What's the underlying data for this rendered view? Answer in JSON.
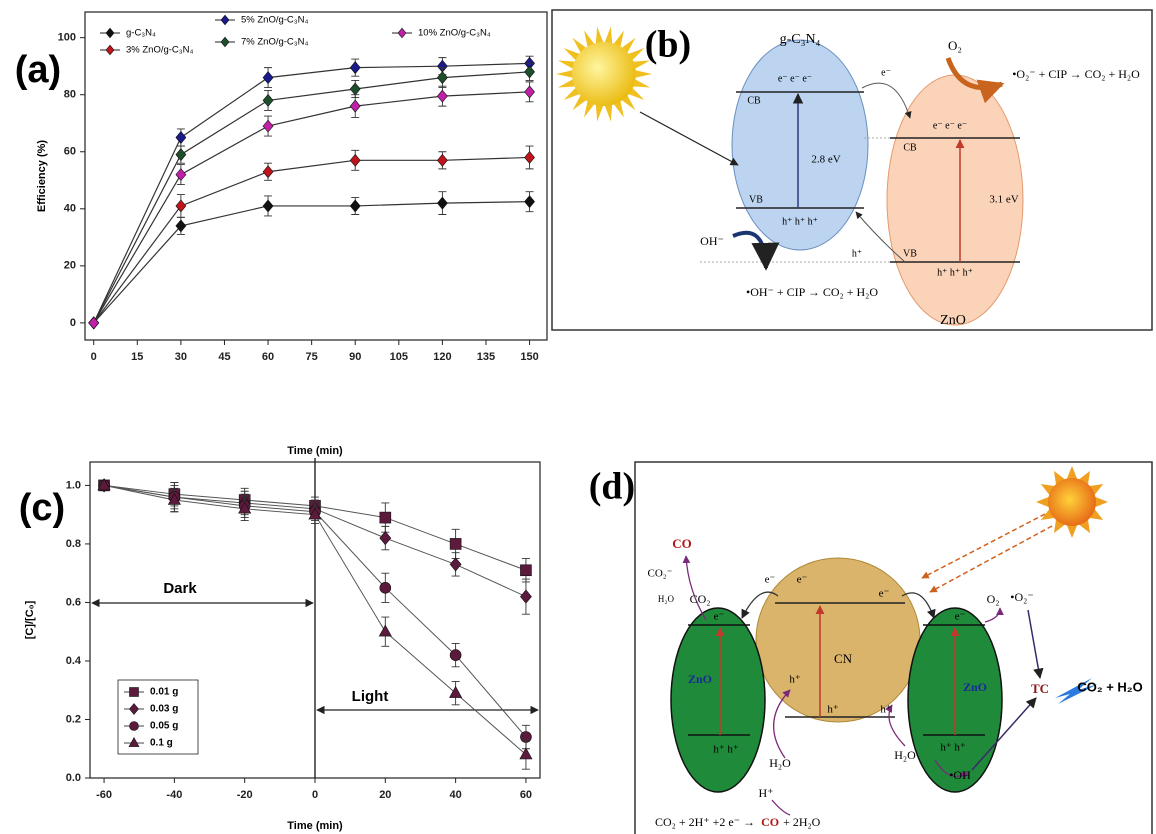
{
  "chart_data": [
    {
      "type": "line",
      "panel_label": "(a)",
      "ylabel": "Efficiency (%)",
      "x": [
        0,
        30,
        60,
        90,
        120,
        150
      ],
      "xlim": [
        -3,
        156
      ],
      "xticks": [
        0,
        15,
        30,
        45,
        60,
        75,
        90,
        105,
        120,
        135,
        150
      ],
      "ylim": [
        -6,
        109
      ],
      "yticks": [
        0,
        20,
        40,
        60,
        80,
        100
      ],
      "line_color": "#333333",
      "series": [
        {
          "name": "g-C₃N₄",
          "color": "#111111",
          "marker": "diamond",
          "values": [
            0,
            34,
            41,
            41,
            42,
            42.5
          ],
          "errors": [
            0,
            3,
            3.5,
            3,
            4,
            3.5
          ]
        },
        {
          "name": "3% ZnO/g-C₃N₄",
          "color": "#c0141c",
          "marker": "diamond",
          "values": [
            0,
            41,
            53,
            57,
            57,
            58
          ],
          "errors": [
            0,
            4,
            3,
            3.5,
            3,
            4
          ]
        },
        {
          "name": "5% ZnO/g-C₃N₄",
          "color": "#1a1a8c",
          "marker": "diamond",
          "values": [
            0,
            65,
            86,
            89.5,
            90,
            91
          ],
          "errors": [
            0,
            3,
            3.5,
            3,
            3,
            2.5
          ]
        },
        {
          "name": "7% ZnO/g-C₃N₄",
          "color": "#1f4f2a",
          "marker": "diamond",
          "values": [
            0,
            59,
            78,
            82,
            86,
            88
          ],
          "errors": [
            0,
            3,
            3.5,
            3,
            3.5,
            3
          ]
        },
        {
          "name": "10% ZnO/g-C₃N₄",
          "color": "#c020a8",
          "marker": "diamond",
          "values": [
            0,
            52,
            69,
            76,
            79.5,
            81
          ],
          "errors": [
            0,
            3.5,
            3.5,
            4,
            3.5,
            3.5
          ]
        }
      ]
    },
    {
      "type": "line",
      "panel_label": "(c)",
      "xlabel": "Time (min)",
      "top_xlabel": "Time (min)",
      "ylabel": "[C]/[C₀]",
      "x": [
        -60,
        -40,
        -20,
        0,
        20,
        40,
        60
      ],
      "xlim": [
        -64,
        64
      ],
      "xticks": [
        -60,
        -40,
        -20,
        0,
        20,
        40,
        60
      ],
      "ylim": [
        0,
        1.08
      ],
      "yticks": [
        {
          "value": 0,
          "label": "0.0"
        },
        0.2,
        0.4,
        0.6,
        0.8,
        {
          "value": 1,
          "label": "1.0"
        }
      ],
      "vline": 0,
      "annotations": [
        "Dark",
        "Light"
      ],
      "line_color": "#555555",
      "series": [
        {
          "name": "0.01 g",
          "color": "#5c1a3c",
          "marker": "square",
          "values": [
            1.0,
            0.97,
            0.95,
            0.93,
            0.89,
            0.8,
            0.71
          ],
          "errors": [
            0.01,
            0.04,
            0.04,
            0.03,
            0.05,
            0.05,
            0.04
          ]
        },
        {
          "name": "0.03 g",
          "color": "#5c1a3c",
          "marker": "diamond",
          "values": [
            1.0,
            0.96,
            0.94,
            0.92,
            0.82,
            0.73,
            0.62
          ],
          "errors": [
            0.01,
            0.05,
            0.04,
            0.03,
            0.04,
            0.04,
            0.06
          ]
        },
        {
          "name": "0.05 g",
          "color": "#5c1a3c",
          "marker": "circle",
          "values": [
            1.0,
            0.96,
            0.93,
            0.91,
            0.65,
            0.42,
            0.14
          ],
          "errors": [
            0.01,
            0.04,
            0.04,
            0.03,
            0.05,
            0.04,
            0.04
          ]
        },
        {
          "name": "0.1 g",
          "color": "#5c1a3c",
          "marker": "triangle",
          "values": [
            1.0,
            0.95,
            0.92,
            0.9,
            0.5,
            0.29,
            0.08
          ],
          "errors": [
            0.01,
            0.04,
            0.04,
            0.03,
            0.05,
            0.04,
            0.05
          ]
        }
      ]
    }
  ],
  "diagram_b": {
    "panel_label": "(b)",
    "texts": [
      "g-C₃N₄",
      "e⁻  e⁻  e⁻",
      "CB",
      "2.8 eV",
      "VB",
      "h⁺  h⁺  h⁺",
      "e⁻",
      "O₂",
      "•O₂⁻ + CIP → CO₂ + H₂O",
      "e⁻  e⁻  e⁻",
      "CB",
      "3.1 eV",
      "VB",
      "h⁺  h⁺  h⁺",
      "h⁺",
      "OH⁻",
      "•OH⁻ + CIP → CO₂ + H₂O",
      "ZnO"
    ]
  },
  "diagram_d": {
    "panel_label": "(d)",
    "texts": [
      "CO",
      "CO₂⁻",
      "H₂O",
      "CO₂",
      "e⁻",
      "e⁻",
      "e⁻",
      "e⁻",
      "e⁻",
      "O₂",
      "•O₂⁻",
      "ZnO",
      "CN",
      "ZnO",
      "TC",
      "CO₂ + H₂O",
      "h⁺",
      "h⁺",
      "h⁺",
      "h⁺  h⁺",
      "H₂O",
      "H₂O",
      "h⁺  h⁺",
      "H⁺",
      "•OH",
      "CO₂ + 2H⁺ +2 e⁻ →",
      "CO",
      "+ 2H₂O"
    ]
  }
}
